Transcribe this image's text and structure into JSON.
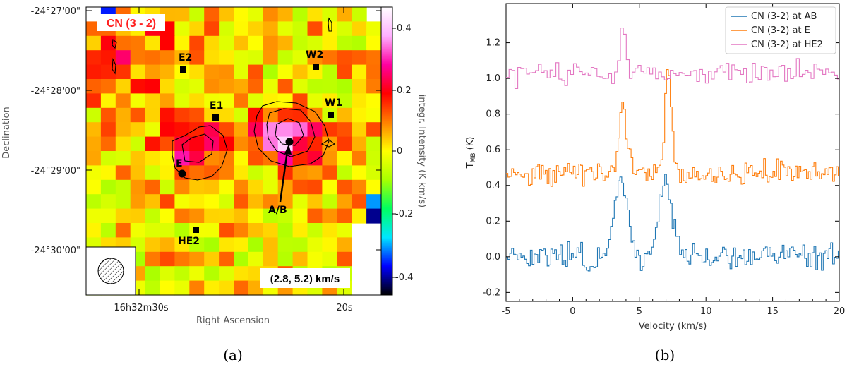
{
  "panel_a": {
    "label": "CN (3 - 2)",
    "velocity_range": "(2.8, 5.2) km/s",
    "caption": "(a)",
    "colorbar_ticks": [
      "0.4",
      "0.2",
      "0",
      "-0.2",
      "-0.4"
    ],
    "colorbar_label": "integr. Intensity (K km/s)",
    "colorbar_colors": [
      "#000000",
      "#0000ff",
      "#00e6ff",
      "#00ff60",
      "#a8ff00",
      "#ffff00",
      "#ff8000",
      "#ff0000",
      "#ff00a0",
      "#ffb0ff",
      "#ffffff"
    ],
    "dec_ticks": [
      "-24°27'00\"",
      "-24°28'00\"",
      "-24°29'00\"",
      "-24°30'00\""
    ],
    "ylabel": "Declination",
    "xlabel": "Right Ascension",
    "ra_ticks": [
      "16h32m30s",
      "20s"
    ],
    "markers": [
      {
        "name": "E2",
        "shape": "square"
      },
      {
        "name": "W2",
        "shape": "square"
      },
      {
        "name": "E1",
        "shape": "square"
      },
      {
        "name": "W1",
        "shape": "square"
      },
      {
        "name": "E",
        "shape": "circle"
      },
      {
        "name": "A/B",
        "shape": "circle"
      },
      {
        "name": "HE2",
        "shape": "square"
      }
    ]
  },
  "chart_data": {
    "type": "line",
    "caption": "(b)",
    "xlabel": "Velocity (km/s)",
    "ylabel": "T_MB (K)",
    "xlim": [
      -5,
      20
    ],
    "ylim": [
      -0.25,
      1.42
    ],
    "xticks": [
      -5,
      0,
      5,
      10,
      15,
      20
    ],
    "yticks": [
      -0.2,
      0.0,
      0.2,
      0.4,
      0.6,
      0.8,
      1.0,
      1.2
    ],
    "series": [
      {
        "name": "CN (3-2) at AB",
        "color": "#1f77b4",
        "baseline": 0.0,
        "noise": 0.06,
        "peaks": [
          {
            "v": 3.6,
            "amp": 0.42,
            "w": 0.5
          },
          {
            "v": 6.9,
            "amp": 0.4,
            "w": 0.55
          }
        ]
      },
      {
        "name": "CN (3-2) at E",
        "color": "#ff7f0e",
        "baseline": 0.47,
        "noise": 0.05,
        "peaks": [
          {
            "v": 3.7,
            "amp": 0.38,
            "w": 0.3
          },
          {
            "v": 7.1,
            "amp": 0.55,
            "w": 0.25
          }
        ]
      },
      {
        "name": "CN (3-2) at HE2",
        "color": "#e377c2",
        "baseline": 1.03,
        "noise": 0.05,
        "peaks": [
          {
            "v": 3.7,
            "amp": 0.25,
            "w": 0.2
          }
        ]
      }
    ]
  }
}
